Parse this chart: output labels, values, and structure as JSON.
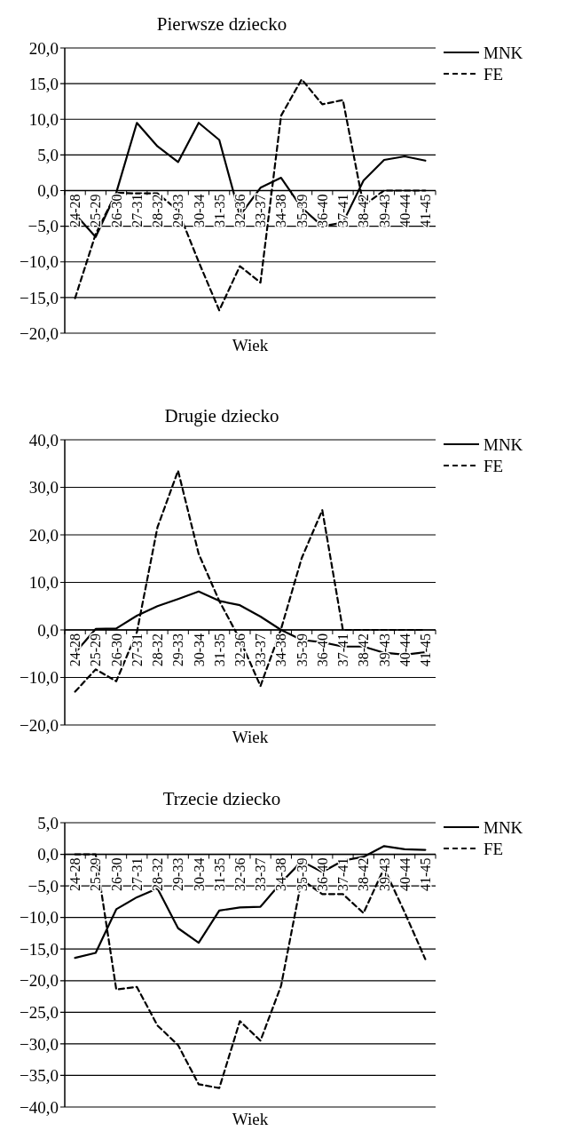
{
  "chart_data": [
    {
      "type": "line",
      "title": "Pierwsze dziecko",
      "xlabel": "Wiek",
      "categories": [
        "24-28",
        "25-29",
        "26-30",
        "27-31",
        "28-32",
        "29-33",
        "30-34",
        "31-35",
        "32-36",
        "33-37",
        "34-38",
        "35-39",
        "36-40",
        "37-41",
        "38-42",
        "39-43",
        "40-44",
        "41-45"
      ],
      "series": [
        {
          "name": "MNK",
          "color": "#000000",
          "line_style": "solid",
          "values": [
            -3.3,
            -6.5,
            -0.3,
            9.5,
            6.2,
            4.0,
            9.5,
            7.1,
            -3.5,
            0.4,
            1.8,
            -2.4,
            -5.0,
            -4.5,
            1.4,
            4.3,
            4.8,
            4.2
          ]
        },
        {
          "name": "FE",
          "color": "#000000",
          "line_style": "dashed",
          "values": [
            -15.1,
            -6.1,
            -0.3,
            -0.4,
            -0.4,
            -2.8,
            -10.0,
            -16.8,
            -10.6,
            -12.9,
            10.5,
            15.6,
            12.1,
            12.7,
            -2.1,
            0,
            0,
            0
          ]
        }
      ],
      "ylim": [
        -20,
        20
      ],
      "yticks": [
        {
          "value": -20,
          "label": "−20,0"
        },
        {
          "value": -15,
          "label": "−15,0"
        },
        {
          "value": -10,
          "label": "−10,0"
        },
        {
          "value": -5,
          "label": "−5,0"
        },
        {
          "value": 0,
          "label": "0,0"
        },
        {
          "value": 5,
          "label": "5,0"
        },
        {
          "value": 10,
          "label": "10,0"
        },
        {
          "value": 15,
          "label": "15,0"
        },
        {
          "value": 20,
          "label": "20,0"
        }
      ],
      "grid": "y",
      "legend": "top right",
      "marker": "none"
    },
    {
      "type": "line",
      "title": "Drugie dziecko",
      "xlabel": "Wiek",
      "categories": [
        "24-28",
        "25-29",
        "26-30",
        "27-31",
        "28-32",
        "29-33",
        "30-34",
        "31-35",
        "32-36",
        "33-37",
        "34-38",
        "35-39",
        "36-40",
        "37-41",
        "38-42",
        "39-43",
        "40-44",
        "41-45"
      ],
      "series": [
        {
          "name": "MNK",
          "color": "#000000",
          "line_style": "solid",
          "values": [
            -4.8,
            0.2,
            0.3,
            3.0,
            5.0,
            6.5,
            8.1,
            6.1,
            5.2,
            2.8,
            0,
            -2.1,
            -2.6,
            -3.5,
            -3.5,
            -4.8,
            -5.2,
            -4.7
          ]
        },
        {
          "name": "FE",
          "color": "#000000",
          "line_style": "dashed",
          "values": [
            -13.0,
            -8.3,
            -10.8,
            -0.5,
            21.6,
            33.5,
            16.0,
            6.1,
            -2.0,
            -11.8,
            0.2,
            15.1,
            25.2,
            0,
            0,
            0,
            0,
            0
          ]
        }
      ],
      "ylim": [
        -20,
        40
      ],
      "yticks": [
        {
          "value": -20,
          "label": "−20,0"
        },
        {
          "value": -10,
          "label": "−10,0"
        },
        {
          "value": 0,
          "label": "0,0"
        },
        {
          "value": 10,
          "label": "10,0"
        },
        {
          "value": 20,
          "label": "20,0"
        },
        {
          "value": 30,
          "label": "30,0"
        },
        {
          "value": 40,
          "label": "40,0"
        }
      ],
      "grid": "y",
      "legend": "top right",
      "marker": "none"
    },
    {
      "type": "line",
      "title": "Trzecie dziecko",
      "xlabel": "Wiek",
      "categories": [
        "24-28",
        "25-29",
        "26-30",
        "27-31",
        "28-32",
        "29-33",
        "30-34",
        "31-35",
        "32-36",
        "33-37",
        "34-38",
        "35-39",
        "36-40",
        "37-41",
        "38-42",
        "39-43",
        "40-44",
        "41-45"
      ],
      "series": [
        {
          "name": "MNK",
          "color": "#000000",
          "line_style": "solid",
          "values": [
            -16.4,
            -15.6,
            -8.7,
            -6.8,
            -5.4,
            -11.7,
            -14.0,
            -8.9,
            -8.4,
            -8.3,
            -4.5,
            -1.1,
            -2.8,
            -1.0,
            -0.4,
            1.3,
            0.8,
            0.7
          ]
        },
        {
          "name": "FE",
          "color": "#000000",
          "line_style": "dashed",
          "values": [
            0,
            0,
            -21.4,
            -21.0,
            -27.1,
            -30.2,
            -36.4,
            -37.0,
            -26.4,
            -29.5,
            -20.8,
            -4.0,
            -6.3,
            -6.3,
            -9.3,
            -2.2,
            -9.2,
            -16.6
          ]
        }
      ],
      "ylim": [
        -40,
        5
      ],
      "yticks": [
        {
          "value": -40,
          "label": "−40,0"
        },
        {
          "value": -35,
          "label": "−35,0"
        },
        {
          "value": -30,
          "label": "−30,0"
        },
        {
          "value": -25,
          "label": "−25,0"
        },
        {
          "value": -20,
          "label": "−20,0"
        },
        {
          "value": -15,
          "label": "−15,0"
        },
        {
          "value": -10,
          "label": "−10,0"
        },
        {
          "value": -5,
          "label": "−5,0"
        },
        {
          "value": 0,
          "label": "0,0"
        },
        {
          "value": 5,
          "label": "5,0"
        }
      ],
      "grid": "y",
      "legend": "top right",
      "marker": "none"
    }
  ]
}
